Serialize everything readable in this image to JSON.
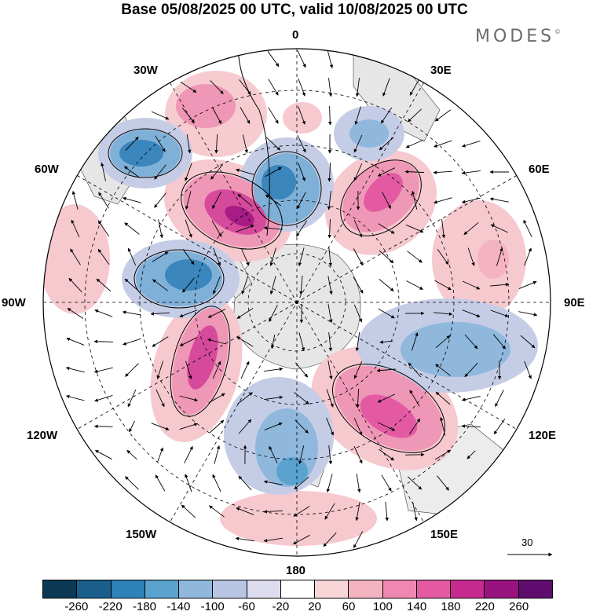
{
  "title": "Base 05/08/2025 00 UTC, valid 10/08/2025 00 UTC",
  "brand": "MODES",
  "brand_mark": "©",
  "longitude_labels": {
    "lon_0": "0",
    "lon_30e": "30E",
    "lon_60e": "60E",
    "lon_90e": "90E",
    "lon_120e": "120E",
    "lon_150e": "150E",
    "lon_180": "180",
    "lon_150w": "150W",
    "lon_120w": "120W",
    "lon_90w": "90W",
    "lon_60w": "60W",
    "lon_30w": "30W"
  },
  "reference_vector": {
    "label": "30"
  },
  "colorbar": {
    "colors": [
      "#0b3954",
      "#1a5f8c",
      "#2f82b8",
      "#5aa3cf",
      "#8fb8dc",
      "#b9c6e3",
      "#dcdcee",
      "#ffffff",
      "#f8d6d8",
      "#f4b3c0",
      "#ef88b0",
      "#e35aa3",
      "#c62a8f",
      "#99137f",
      "#5e0c6e"
    ],
    "ticks": [
      "-260",
      "-220",
      "-180",
      "-140",
      "-100",
      "-60",
      "-20",
      "20",
      "60",
      "100",
      "140",
      "180",
      "220",
      "260"
    ]
  },
  "colors": {
    "pos_weak": "#f6c9cf",
    "pos_mid": "#ef97b6",
    "pos_strong": "#d64a9c",
    "pos_max": "#a81c86",
    "neg_weak": "#c5cde6",
    "neg_mid": "#7fb0d8",
    "neg_strong": "#3a86bd",
    "land": "#e6e6e6"
  }
}
